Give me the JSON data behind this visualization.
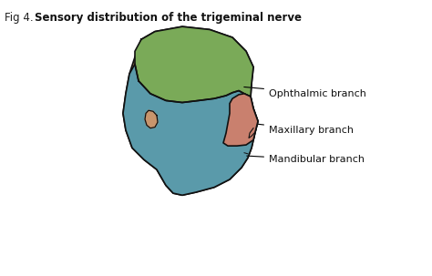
{
  "title_plain": "Fig 4. ",
  "title_bold": "Sensory distribution of the trigeminal nerve",
  "figure_bg": "#dde8f0",
  "white_box": "#ffffff",
  "skin_color": "#c8956c",
  "ophthalmic_color": "#7aaa58",
  "maxillary_color": "#c9806e",
  "mandibular_color": "#5a9aaa",
  "outline_color": "#111111",
  "labels": [
    "Ophthalmic branch",
    "Maxillary branch",
    "Mandibular branch"
  ]
}
